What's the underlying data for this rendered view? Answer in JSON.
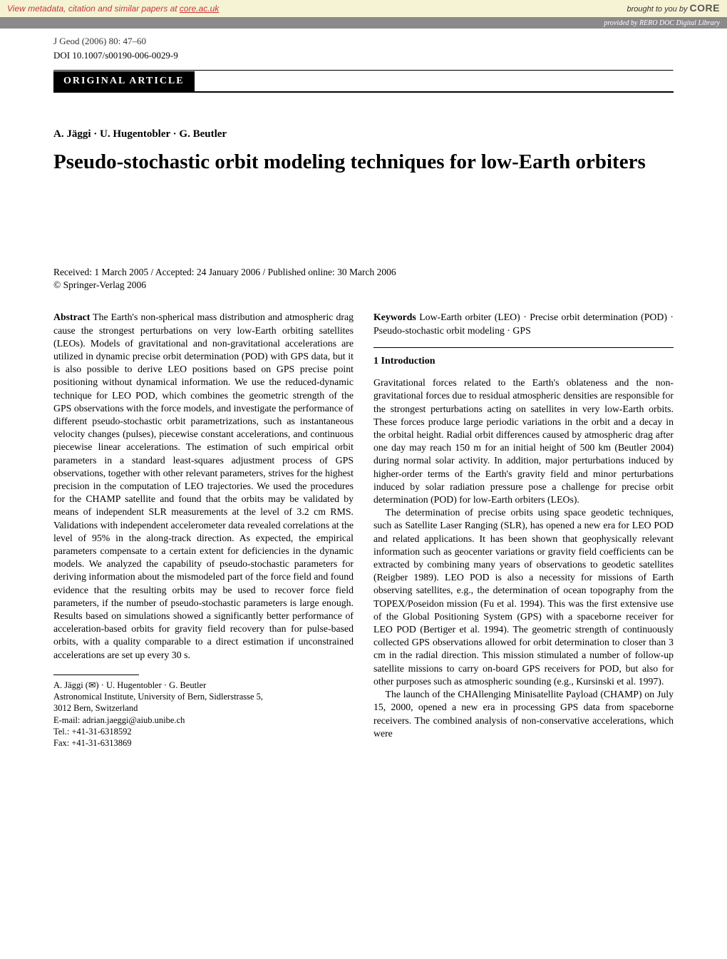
{
  "banner": {
    "left_prefix": "View metadata, citation and similar papers at ",
    "link_text": "core.ac.uk",
    "brought": "brought to you by ",
    "logo": "CORE",
    "provided": "provided by RERO DOC Digital Library"
  },
  "journal": {
    "citation": "J Geod (2006) 80: 47–60",
    "doi": "DOI 10.1007/s00190-006-0029-9"
  },
  "article_type": "ORIGINAL ARTICLE",
  "authors": "A. Jäggi · U. Hugentobler · G. Beutler",
  "title": "Pseudo-stochastic orbit modeling techniques for low-Earth orbiters",
  "history": "Received: 1 March 2005 / Accepted: 24 January 2006 / Published online: 30 March 2006",
  "copyright": "© Springer-Verlag 2006",
  "abstract": {
    "label": "Abstract",
    "text": " The Earth's non-spherical mass distribution and atmospheric drag cause the strongest perturbations on very low-Earth orbiting satellites (LEOs). Models of gravitational and non-gravitational accelerations are utilized in dynamic precise orbit determination (POD) with GPS data, but it is also possible to derive LEO positions based on GPS precise point positioning without dynamical information. We use the reduced-dynamic technique for LEO POD, which combines the geometric strength of the GPS observations with the force models, and investigate the performance of different pseudo-stochastic orbit parametrizations, such as instantaneous velocity changes (pulses), piecewise constant accelerations, and continuous piecewise linear accelerations. The estimation of such empirical orbit parameters in a standard least-squares adjustment process of GPS observations, together with other relevant parameters, strives for the highest precision in the computation of LEO trajectories. We used the procedures for the CHAMP satellite and found that the orbits may be validated by means of independent SLR measurements at the level of 3.2 cm RMS. Validations with independent accelerometer data revealed correlations at the level of 95% in the along-track direction. As expected, the empirical parameters compensate to a certain extent for deficiencies in the dynamic models. We analyzed the capability of pseudo-stochastic parameters for deriving information about the mismodeled part of the force field and found evidence that the resulting orbits may be used to recover force field parameters, if the number of pseudo-stochastic parameters is large enough. Results based on simulations showed a significantly better performance of acceleration-based orbits for gravity field recovery than for pulse-based orbits, with a quality comparable to a direct estimation if unconstrained accelerations are set up every 30 s."
  },
  "keywords": {
    "label": "Keywords",
    "text": " Low-Earth orbiter (LEO) · Precise orbit determination (POD) · Pseudo-stochastic orbit modeling · GPS"
  },
  "section1": {
    "heading": "1 Introduction",
    "p1": "Gravitational forces related to the Earth's oblateness and the non-gravitational forces due to residual atmospheric densities are responsible for the strongest perturbations acting on satellites in very low-Earth orbits. These forces produce large periodic variations in the orbit and a decay in the orbital height. Radial orbit differences caused by atmospheric drag after one day may reach 150 m for an initial height of 500 km (Beutler 2004) during normal solar activity. In addition, major perturbations induced by higher-order terms of the Earth's gravity field and minor perturbations induced by solar radiation pressure pose a challenge for precise orbit determination (POD) for low-Earth orbiters (LEOs).",
    "p2": "The determination of precise orbits using space geodetic techniques, such as Satellite Laser Ranging (SLR), has opened a new era for LEO POD and related applications. It has been shown that geophysically relevant information such as geocenter variations or gravity field coefficients can be extracted by combining many years of observations to geodetic satellites (Reigber 1989). LEO POD is also a necessity for missions of Earth observing satellites, e.g., the determination of ocean topography from the TOPEX/Poseidon mission (Fu et al. 1994). This was the first extensive use of the Global Positioning System (GPS) with a spaceborne receiver for LEO POD (Bertiger et al. 1994). The geometric strength of continuously collected GPS observations allowed for orbit determination to closer than 3 cm in the radial direction. This mission stimulated a number of follow-up satellite missions to carry on-board GPS receivers for POD, but also for other purposes such as atmospheric sounding (e.g., Kursinski et al. 1997).",
    "p3": "The launch of the CHAllenging Minisatellite Payload (CHAMP) on July 15, 2000, opened a new era in processing GPS data from spaceborne receivers. The combined analysis of non-conservative accelerations, which were"
  },
  "affiliation": {
    "name_line": "A. Jäggi (✉) · U. Hugentobler · G. Beutler",
    "inst": "Astronomical Institute, University of Bern, Sidlerstrasse 5,",
    "city": "3012 Bern, Switzerland",
    "email": "E-mail: adrian.jaeggi@aiub.unibe.ch",
    "tel": "Tel.: +41-31-6318592",
    "fax": "Fax: +41-31-6313869"
  },
  "colors": {
    "banner_bg": "#f5f3d4",
    "banner_link": "#c83737",
    "provided_bg": "#8a8a8a",
    "bar_bg": "#000000",
    "bar_fg": "#ffffff",
    "text": "#000000"
  },
  "fonts": {
    "body": "Times New Roman",
    "banner": "Arial",
    "title_size_pt": 22,
    "body_size_pt": 10.5,
    "authors_size_pt": 11.5
  }
}
